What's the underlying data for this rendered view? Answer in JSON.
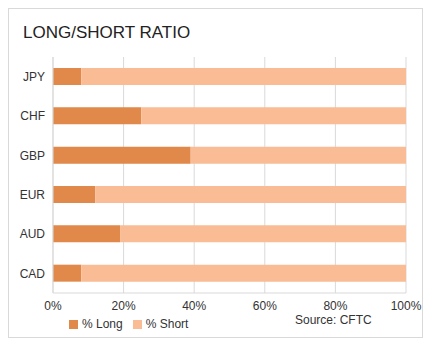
{
  "chart_data": {
    "type": "bar",
    "title": "LONG/SHORT RATIO",
    "orientation": "horizontal",
    "stacked": true,
    "categories": [
      "JPY",
      "CHF",
      "GBP",
      "EUR",
      "AUD",
      "CAD"
    ],
    "series": [
      {
        "name": "% Long",
        "color": "#E0894A",
        "values": [
          8,
          25,
          39,
          12,
          19,
          8
        ]
      },
      {
        "name": "% Short",
        "color": "#F9BC95",
        "values": [
          92,
          75,
          61,
          88,
          81,
          92
        ]
      }
    ],
    "xlim": [
      0,
      100
    ],
    "xticks": [
      {
        "value": 0,
        "label": "0%"
      },
      {
        "value": 20,
        "label": "20%"
      },
      {
        "value": 40,
        "label": "40%"
      },
      {
        "value": 60,
        "label": "60%"
      },
      {
        "value": 80,
        "label": "80%"
      },
      {
        "value": 100,
        "label": "100%"
      }
    ],
    "grid": true,
    "legend": "bottom",
    "annotations": [
      "Source: CFTC"
    ]
  }
}
